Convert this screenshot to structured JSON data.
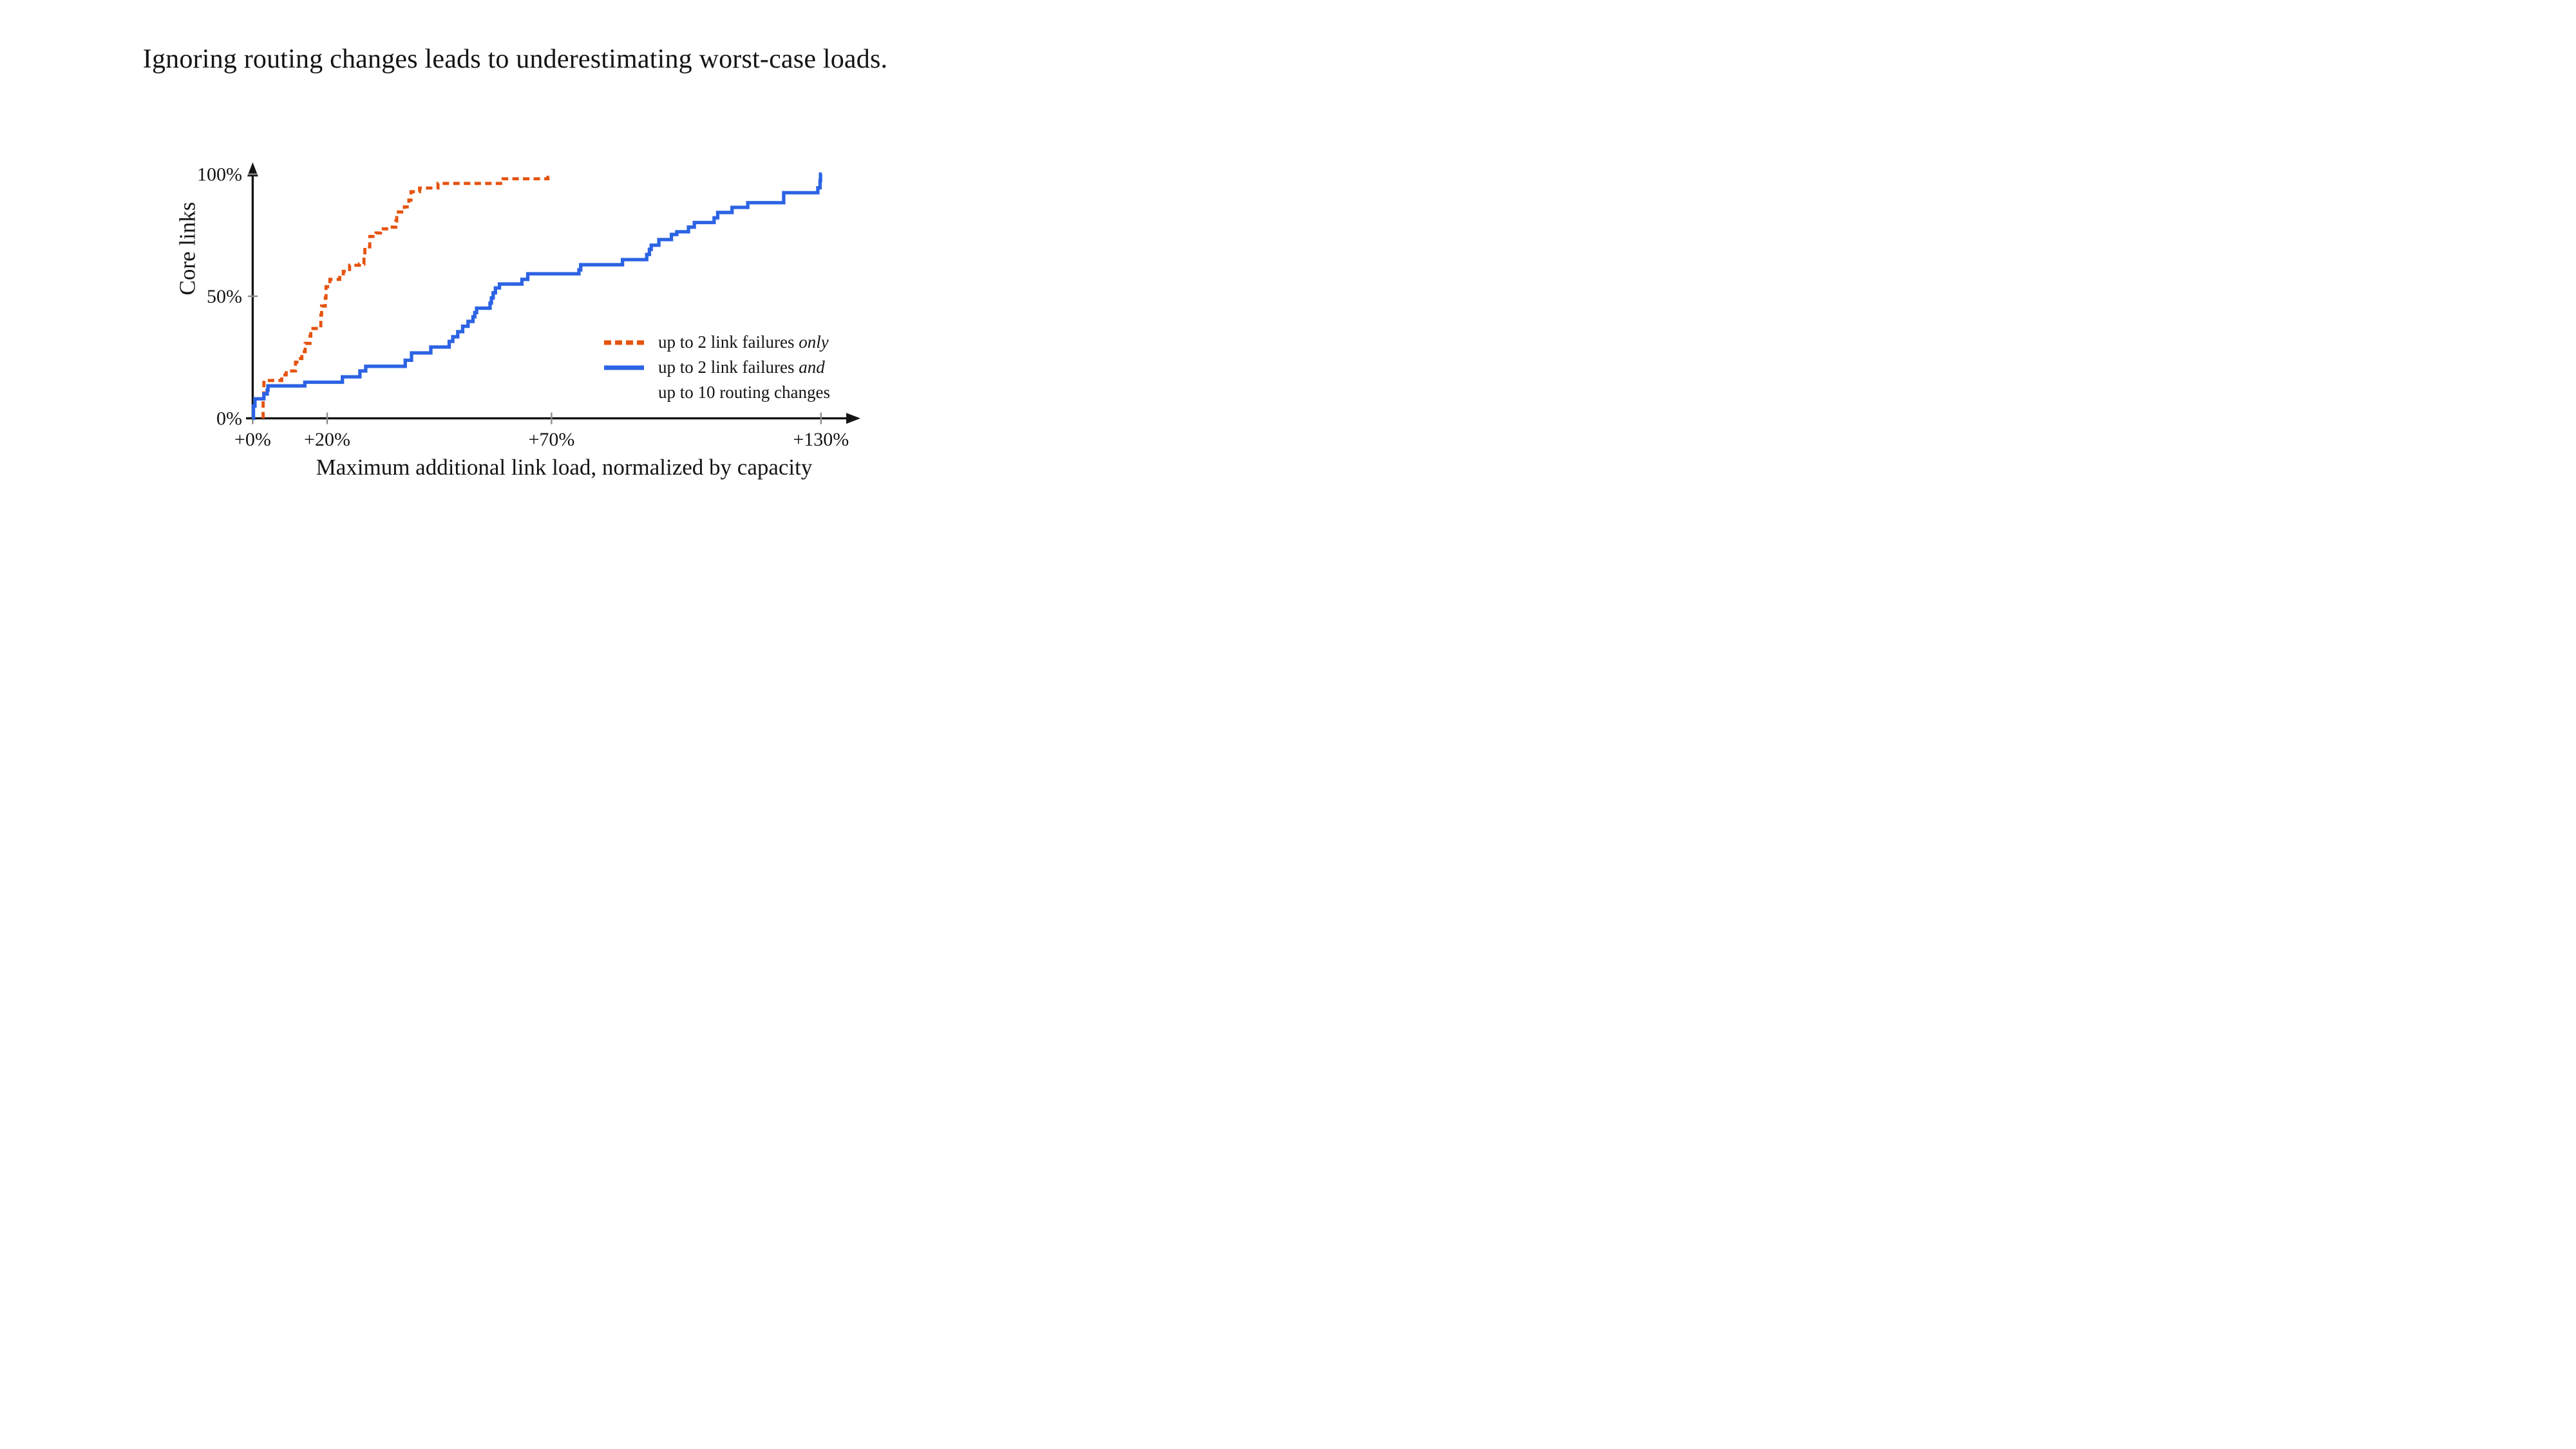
{
  "title": "Ignoring routing changes leads to underestimating worst-case loads.",
  "chart_data": {
    "type": "line",
    "subtype": "step-cdf",
    "xlabel": "Maximum additional link load, normalized by capacity",
    "ylabel": "Core links",
    "xlim": [
      0,
      134
    ],
    "ylim": [
      0,
      100
    ],
    "grid": false,
    "legend_position": "lower right",
    "x_ticks": [
      {
        "value": 0,
        "label": "+0%"
      },
      {
        "value": 20,
        "label": "+20%"
      },
      {
        "value": 70,
        "label": "+70%"
      },
      {
        "value": 130,
        "label": "+130%"
      }
    ],
    "y_ticks": [
      {
        "value": 0,
        "label": "0%"
      },
      {
        "value": 50,
        "label": "50%"
      },
      {
        "value": 100,
        "label": "100%"
      }
    ],
    "series": [
      {
        "name": "up to 2 link failures only",
        "style": "dashed",
        "color": "#E5530E",
        "start_x": 2.8,
        "end_x": 69.5,
        "steps": [
          [
            2.8,
            8
          ],
          [
            3.0,
            15.5
          ],
          [
            7.8,
            17.8
          ],
          [
            9.0,
            19.4
          ],
          [
            11.5,
            23.0
          ],
          [
            12.4,
            24.5
          ],
          [
            13.2,
            27.3
          ],
          [
            14.1,
            30.7
          ],
          [
            15.4,
            33.7
          ],
          [
            15.6,
            36.8
          ],
          [
            18.3,
            42.3
          ],
          [
            18.5,
            46.0
          ],
          [
            19.5,
            49.3
          ],
          [
            19.7,
            53.9
          ],
          [
            20.6,
            56.9
          ],
          [
            22.8,
            58.4
          ],
          [
            23.6,
            60.2
          ],
          [
            25.0,
            62.7
          ],
          [
            27.2,
            63.2
          ],
          [
            28.2,
            66.0
          ],
          [
            28.4,
            70.2
          ],
          [
            29.5,
            74.5
          ],
          [
            30.9,
            75.9
          ],
          [
            31.9,
            77.6
          ],
          [
            34.0,
            78.3
          ],
          [
            35.3,
            80.8
          ],
          [
            35.5,
            84.5
          ],
          [
            37.2,
            86.6
          ],
          [
            38.2,
            89.4
          ],
          [
            38.7,
            92.8
          ],
          [
            40.6,
            94.3
          ],
          [
            44.7,
            96.2
          ],
          [
            59.2,
            98.1
          ],
          [
            69.2,
            98.7
          ]
        ]
      },
      {
        "name": "up to 2 link failures and up to 10 routing changes",
        "style": "solid",
        "color": "#2C63E4",
        "start_x": 0,
        "end_x": 130.2,
        "steps": [
          [
            0.2,
            5.0
          ],
          [
            0.6,
            8.0
          ],
          [
            3.0,
            10.0
          ],
          [
            3.9,
            11.5
          ],
          [
            4.1,
            13.3
          ],
          [
            14.0,
            14.8
          ],
          [
            23.4,
            17.0
          ],
          [
            27.3,
            19.4
          ],
          [
            28.6,
            21.3
          ],
          [
            37.4,
            23.8
          ],
          [
            38.8,
            26.8
          ],
          [
            43.1,
            29.2
          ],
          [
            47.2,
            31.5
          ],
          [
            48.0,
            33.4
          ],
          [
            49.1,
            35.5
          ],
          [
            50.2,
            37.7
          ],
          [
            51.4,
            39.7
          ],
          [
            52.5,
            41.6
          ],
          [
            52.9,
            43.3
          ],
          [
            53.3,
            45.1
          ],
          [
            56.3,
            47.2
          ],
          [
            56.6,
            49.3
          ],
          [
            57.0,
            51.4
          ],
          [
            57.5,
            53.4
          ],
          [
            58.4,
            55.0
          ],
          [
            63.4,
            56.9
          ],
          [
            64.7,
            59.2
          ],
          [
            76.1,
            60.8
          ],
          [
            76.5,
            62.9
          ],
          [
            85.8,
            65.0
          ],
          [
            91.2,
            67.1
          ],
          [
            91.8,
            69.2
          ],
          [
            92.2,
            70.9
          ],
          [
            93.9,
            73.2
          ],
          [
            96.7,
            75.3
          ],
          [
            97.9,
            76.4
          ],
          [
            100.5,
            78.3
          ],
          [
            101.8,
            80.2
          ],
          [
            106.2,
            82.1
          ],
          [
            107.0,
            84.3
          ],
          [
            110.2,
            86.4
          ],
          [
            113.7,
            88.3
          ],
          [
            121.7,
            92.4
          ],
          [
            129.3,
            94.4
          ],
          [
            129.8,
            97.4
          ],
          [
            129.9,
            100.0
          ]
        ]
      }
    ]
  },
  "legend": {
    "entries": [
      {
        "text": "up to 2 link failures ",
        "italic": "only"
      },
      {
        "text": "up to 2 link failures ",
        "italic": "and"
      },
      {
        "text": "up to 10 routing changes",
        "italic": ""
      }
    ]
  }
}
